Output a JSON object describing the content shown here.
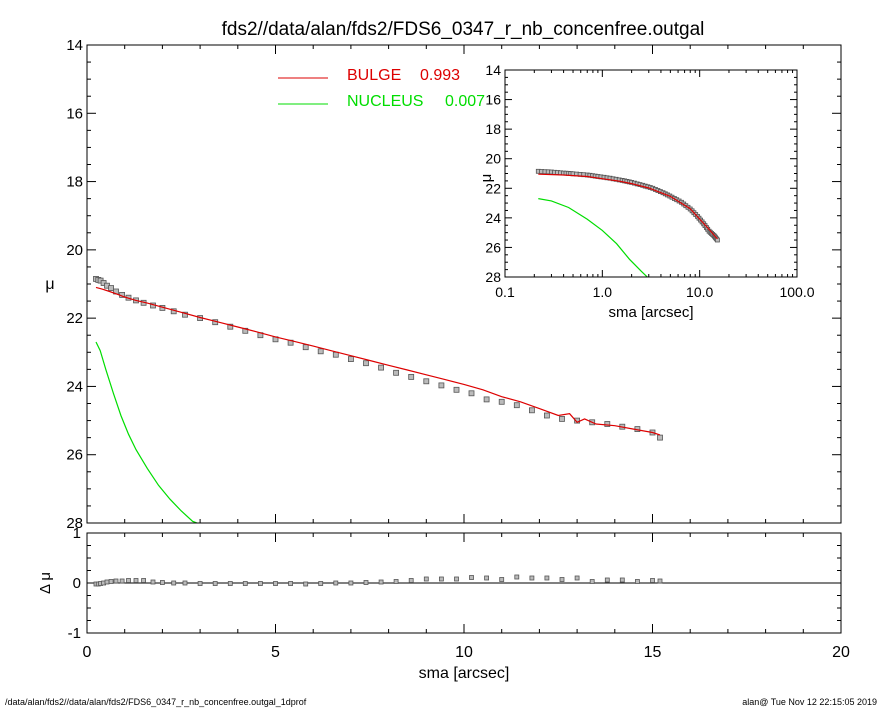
{
  "title": "fds2//data/alan/fds2/FDS6_0347_r_nb_concenfree.outgal",
  "footer": {
    "left": "/data/alan/fds2//data/alan/fds2/FDS6_0347_r_nb_concenfree.outgal_1dprof",
    "right": "alan@  Tue Nov 12 22:15:05 2019"
  },
  "colors": {
    "data": "#555555",
    "bulge": "#dd0000",
    "nucleus": "#00dd00",
    "axes": "#000000"
  },
  "chart_data": [
    {
      "id": "main",
      "type": "line",
      "xlabel": "sma [arcsec]",
      "ylabel": "μ",
      "xlim": [
        0,
        20
      ],
      "ylim": [
        28,
        14
      ],
      "x_tick_labels": [
        "0",
        "5",
        "10",
        "15",
        "20"
      ],
      "y_tick_labels": [
        "14",
        "16",
        "18",
        "20",
        "22",
        "24",
        "26",
        "28"
      ],
      "legend": {
        "placement": "top-center",
        "entries": [
          {
            "label": "BULGE",
            "value": "0.993",
            "color": "#dd0000"
          },
          {
            "label": "NUCLEUS",
            "value": "0.007",
            "color": "#00dd00"
          }
        ]
      },
      "series": [
        {
          "kind": "markers",
          "x": [
            0.24,
            0.3,
            0.36,
            0.44,
            0.53,
            0.64,
            0.77,
            0.93,
            1.1,
            1.3,
            1.5,
            1.75,
            2.0,
            2.3,
            2.6,
            3.0,
            3.4,
            3.8,
            4.2,
            4.6,
            5.0,
            5.4,
            5.8,
            6.2,
            6.6,
            7.0,
            7.4,
            7.8,
            8.2,
            8.6,
            9.0,
            9.4,
            9.8,
            10.2,
            10.6,
            11.0,
            11.4,
            11.8,
            12.2,
            12.6,
            13.0,
            13.4,
            13.8,
            14.2,
            14.6,
            15.0,
            15.2
          ],
          "y": [
            20.85,
            20.88,
            20.9,
            20.97,
            21.05,
            21.12,
            21.22,
            21.32,
            21.4,
            21.48,
            21.55,
            21.63,
            21.7,
            21.8,
            21.9,
            22.0,
            22.12,
            22.25,
            22.37,
            22.5,
            22.62,
            22.72,
            22.85,
            22.97,
            23.07,
            23.2,
            23.32,
            23.45,
            23.6,
            23.72,
            23.85,
            23.97,
            24.1,
            24.2,
            24.38,
            24.45,
            24.55,
            24.7,
            24.85,
            24.95,
            25.0,
            25.05,
            25.1,
            25.18,
            25.25,
            25.35,
            25.5
          ]
        },
        {
          "name": "BULGE",
          "x": [
            0.24,
            0.4,
            0.6,
            0.8,
            1.0,
            1.3,
            1.6,
            2.0,
            2.5,
            3.0,
            3.5,
            4.0,
            4.5,
            5.0,
            5.5,
            6.0,
            6.5,
            7.0,
            7.5,
            8.0,
            8.5,
            9.0,
            9.5,
            10.0,
            10.5,
            11.0,
            11.5,
            12.0,
            12.5,
            12.8,
            13.0,
            13.2,
            13.5,
            14.0,
            14.5,
            15.0,
            15.2
          ],
          "y": [
            21.1,
            21.15,
            21.22,
            21.3,
            21.38,
            21.48,
            21.56,
            21.68,
            21.83,
            21.98,
            22.12,
            22.26,
            22.4,
            22.55,
            22.68,
            22.82,
            22.96,
            23.1,
            23.24,
            23.38,
            23.52,
            23.66,
            23.8,
            23.94,
            24.1,
            24.3,
            24.45,
            24.65,
            24.85,
            24.8,
            25.05,
            24.95,
            25.1,
            25.15,
            25.25,
            25.35,
            25.42
          ]
        },
        {
          "name": "NUCLEUS",
          "x": [
            0.24,
            0.35,
            0.5,
            0.7,
            0.9,
            1.1,
            1.3,
            1.6,
            1.9,
            2.2,
            2.5,
            2.8,
            2.92
          ],
          "y": [
            22.7,
            22.95,
            23.5,
            24.2,
            24.85,
            25.4,
            25.85,
            26.4,
            26.9,
            27.3,
            27.65,
            27.95,
            28.0
          ]
        }
      ]
    },
    {
      "id": "inset",
      "type": "line",
      "xscale": "log",
      "xlabel": "sma [arcsec]",
      "ylabel": "μ",
      "xlim": [
        0.1,
        100
      ],
      "ylim": [
        28,
        14
      ],
      "x_tick_labels": [
        "0.1",
        "1.0",
        "10.0",
        "100.0"
      ],
      "y_tick_labels": [
        "14",
        "16",
        "18",
        "20",
        "22",
        "24",
        "26",
        "28"
      ],
      "series": [
        {
          "kind": "markers",
          "x": [
            0.22,
            0.3,
            0.4,
            0.5,
            0.7,
            0.9,
            1.2,
            1.6,
            2.0,
            2.6,
            3.3,
            4.2,
            5.2,
            6.5,
            8.0,
            9.5,
            11.0,
            12.5,
            14.0,
            15.2
          ],
          "y": [
            20.85,
            20.9,
            20.97,
            21.02,
            21.1,
            21.2,
            21.32,
            21.47,
            21.6,
            21.8,
            22.0,
            22.3,
            22.6,
            22.95,
            23.4,
            23.9,
            24.4,
            24.9,
            25.2,
            25.5
          ]
        },
        {
          "name": "BULGE",
          "x": [
            0.22,
            0.4,
            0.7,
            1.0,
            1.5,
            2.0,
            3.0,
            5.0,
            8.0,
            12.0,
            15.2
          ],
          "y": [
            21.05,
            21.1,
            21.2,
            21.35,
            21.52,
            21.68,
            21.98,
            22.55,
            23.38,
            24.65,
            25.42
          ]
        },
        {
          "name": "NUCLEUS",
          "x": [
            0.22,
            0.3,
            0.45,
            0.7,
            1.0,
            1.4,
            1.9,
            2.5,
            2.9
          ],
          "y": [
            22.7,
            22.85,
            23.3,
            24.1,
            24.85,
            25.75,
            26.8,
            27.6,
            28.0
          ]
        }
      ]
    },
    {
      "id": "residual",
      "type": "scatter",
      "xlabel": "sma [arcsec]",
      "ylabel": "Δ μ",
      "xlim": [
        0,
        20
      ],
      "ylim": [
        -1,
        1
      ],
      "x_tick_labels": [
        "0",
        "5",
        "10",
        "15",
        "20"
      ],
      "y_tick_labels": [
        "1",
        "0",
        "-1"
      ],
      "zero_line": 0,
      "series": [
        {
          "x": [
            0.24,
            0.3,
            0.36,
            0.44,
            0.53,
            0.64,
            0.77,
            0.93,
            1.1,
            1.3,
            1.5,
            1.75,
            2.0,
            2.3,
            2.6,
            3.0,
            3.4,
            3.8,
            4.2,
            4.6,
            5.0,
            5.4,
            5.8,
            6.2,
            6.6,
            7.0,
            7.4,
            7.8,
            8.2,
            8.6,
            9.0,
            9.4,
            9.8,
            10.2,
            10.6,
            11.0,
            11.4,
            11.8,
            12.2,
            12.6,
            13.0,
            13.4,
            13.8,
            14.2,
            14.6,
            15.0,
            15.2
          ],
          "y": [
            -0.02,
            -0.02,
            -0.01,
            0.0,
            0.02,
            0.03,
            0.04,
            0.04,
            0.05,
            0.05,
            0.05,
            0.02,
            0.01,
            0.0,
            0.0,
            -0.01,
            -0.01,
            -0.01,
            -0.01,
            -0.01,
            -0.01,
            -0.01,
            -0.02,
            -0.01,
            0.0,
            0.0,
            0.01,
            0.02,
            0.03,
            0.05,
            0.08,
            0.08,
            0.08,
            0.11,
            0.1,
            0.07,
            0.12,
            0.1,
            0.1,
            0.07,
            0.1,
            0.03,
            0.06,
            0.06,
            0.03,
            0.05,
            0.04
          ]
        }
      ]
    }
  ]
}
